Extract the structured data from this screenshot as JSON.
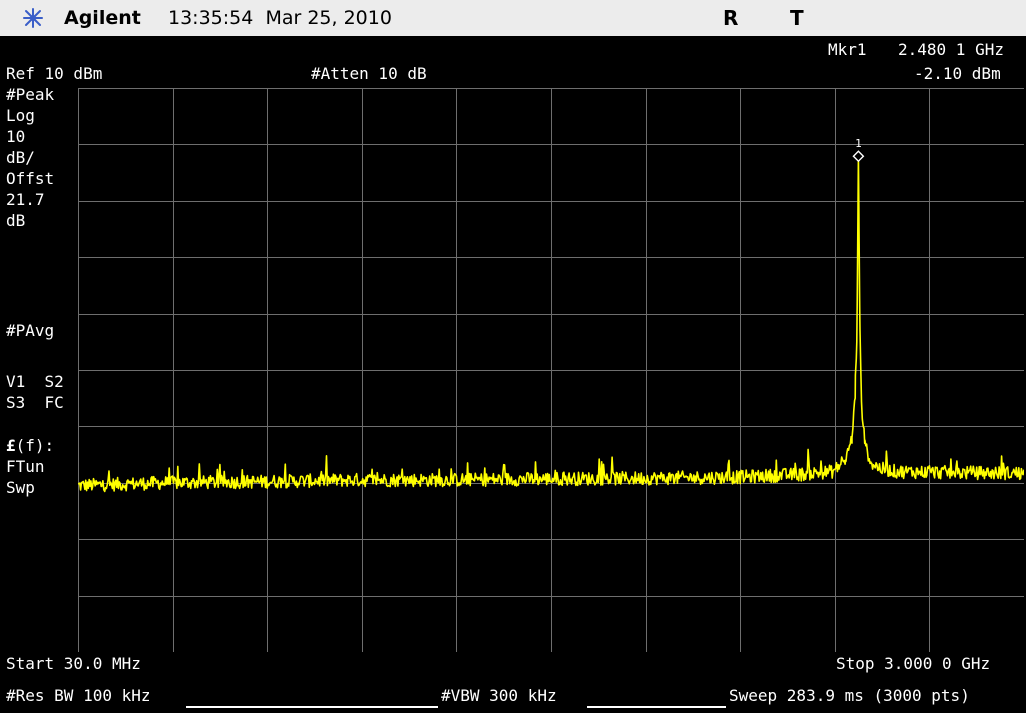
{
  "header": {
    "brand": "Agilent",
    "time": "13:35:54",
    "date": "Mar 25, 2010",
    "flags": [
      "R",
      "T"
    ],
    "logo_icon": "agilent-spark-icon",
    "background": "#ececec"
  },
  "marker": {
    "label": "Mkr1",
    "frequency": "2.480 1 GHz",
    "amplitude": "-2.10 dBm",
    "number": "1"
  },
  "settings": {
    "ref_level": "Ref 10 dBm",
    "attenuation": "#Atten 10 dB"
  },
  "side_panel": {
    "lines_top": [
      "#Peak",
      "Log",
      "10",
      "dB/",
      "Offst",
      "21.7",
      "dB"
    ],
    "pavg": "#PAvg",
    "v1_s2": "V1  S2",
    "s3_fc": "S3  FC",
    "ef": "(f):",
    "ef_symbol": "£",
    "ftun": "FTun",
    "swp": "Swp"
  },
  "footer": {
    "start": "Start 30.0 MHz",
    "stop": "Stop 3.000 0 GHz",
    "res_bw": "#Res BW 100 kHz",
    "vbw": "#VBW 300 kHz",
    "sweep": "Sweep 283.9 ms (3000 pts)"
  },
  "colors": {
    "trace": "#ffff00",
    "grid": "#6e6e6e",
    "screen": "#000000",
    "text": "#ffffff"
  },
  "chart_data": {
    "type": "line",
    "x_unit": "GHz",
    "y_unit": "dBm",
    "xlim": [
      0.03,
      3.0
    ],
    "ylim": [
      -90,
      10
    ],
    "grid": true,
    "series": [
      {
        "x": [
          0.03,
          0.3,
          0.6,
          0.9,
          1.2,
          1.5,
          1.8,
          2.1,
          2.3,
          2.4,
          2.44,
          2.46,
          2.47,
          2.475,
          2.478,
          2.4801,
          2.482,
          2.485,
          2.49,
          2.5,
          2.52,
          2.55,
          2.6,
          2.8,
          3.0
        ],
        "y": [
          -60.5,
          -60,
          -59.8,
          -59.5,
          -59.5,
          -59.3,
          -59.2,
          -59,
          -58.5,
          -58,
          -56,
          -52,
          -45,
          -35,
          -18,
          -2.1,
          -15,
          -33,
          -46,
          -53,
          -56.5,
          -57.5,
          -58,
          -58.2,
          -58.3
        ]
      }
    ]
  }
}
